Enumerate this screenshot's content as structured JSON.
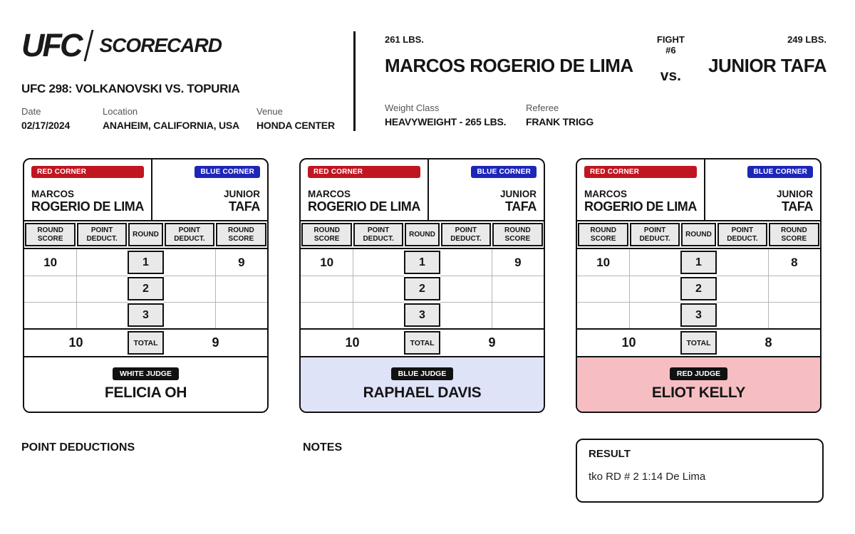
{
  "header": {
    "logo_ufc": "UFC",
    "logo_scorecard": "SCORECARD",
    "event_title": "UFC 298: VOLKANOVSKI VS. TOPURIA",
    "date_label": "Date",
    "date_value": "02/17/2024",
    "location_label": "Location",
    "location_value": "ANAHEIM, CALIFORNIA, USA",
    "venue_label": "Venue",
    "venue_value": "HONDA CENTER"
  },
  "fight": {
    "red_weight": "261 LBS.",
    "fight_number": "FIGHT #6",
    "blue_weight": "249 LBS.",
    "red_name": "MARCOS ROGERIO DE LIMA",
    "vs": "vs.",
    "blue_name": "JUNIOR TAFA",
    "weight_class_label": "Weight Class",
    "weight_class_value": "HEAVYWEIGHT - 265 LBS.",
    "referee_label": "Referee",
    "referee_value": "FRANK TRIGG"
  },
  "scorecards": [
    {
      "red_corner_label": "RED CORNER",
      "blue_corner_label": "BLUE CORNER",
      "red_first": "MARCOS",
      "red_last": "ROGERIO DE LIMA",
      "blue_first": "JUNIOR",
      "blue_last": "TAFA",
      "col_headers": [
        "ROUND SCORE",
        "POINT DEDUCT.",
        "ROUND",
        "POINT DEDUCT.",
        "ROUND SCORE"
      ],
      "rounds": [
        {
          "round": "1",
          "red_score": "10",
          "red_deduct": "",
          "blue_deduct": "",
          "blue_score": "9"
        },
        {
          "round": "2",
          "red_score": "",
          "red_deduct": "",
          "blue_deduct": "",
          "blue_score": ""
        },
        {
          "round": "3",
          "red_score": "",
          "red_deduct": "",
          "blue_deduct": "",
          "blue_score": ""
        }
      ],
      "total_label": "TOTAL",
      "red_total": "10",
      "blue_total": "9",
      "judge_type": "WHITE JUDGE",
      "judge_name": "FELICIA OH"
    },
    {
      "red_corner_label": "RED CORNER",
      "blue_corner_label": "BLUE CORNER",
      "red_first": "MARCOS",
      "red_last": "ROGERIO DE LIMA",
      "blue_first": "JUNIOR",
      "blue_last": "TAFA",
      "col_headers": [
        "ROUND SCORE",
        "POINT DEDUCT.",
        "ROUND",
        "POINT DEDUCT.",
        "ROUND SCORE"
      ],
      "rounds": [
        {
          "round": "1",
          "red_score": "10",
          "red_deduct": "",
          "blue_deduct": "",
          "blue_score": "9"
        },
        {
          "round": "2",
          "red_score": "",
          "red_deduct": "",
          "blue_deduct": "",
          "blue_score": ""
        },
        {
          "round": "3",
          "red_score": "",
          "red_deduct": "",
          "blue_deduct": "",
          "blue_score": ""
        }
      ],
      "total_label": "TOTAL",
      "red_total": "10",
      "blue_total": "9",
      "judge_type": "BLUE JUDGE",
      "judge_name": "RAPHAEL DAVIS"
    },
    {
      "red_corner_label": "RED CORNER",
      "blue_corner_label": "BLUE CORNER",
      "red_first": "MARCOS",
      "red_last": "ROGERIO DE LIMA",
      "blue_first": "JUNIOR",
      "blue_last": "TAFA",
      "col_headers": [
        "ROUND SCORE",
        "POINT DEDUCT.",
        "ROUND",
        "POINT DEDUCT.",
        "ROUND SCORE"
      ],
      "rounds": [
        {
          "round": "1",
          "red_score": "10",
          "red_deduct": "",
          "blue_deduct": "",
          "blue_score": "8"
        },
        {
          "round": "2",
          "red_score": "",
          "red_deduct": "",
          "blue_deduct": "",
          "blue_score": ""
        },
        {
          "round": "3",
          "red_score": "",
          "red_deduct": "",
          "blue_deduct": "",
          "blue_score": ""
        }
      ],
      "total_label": "TOTAL",
      "red_total": "10",
      "blue_total": "8",
      "judge_type": "RED JUDGE",
      "judge_name": "ELIOT KELLY"
    }
  ],
  "footer": {
    "point_deductions_label": "POINT DEDUCTIONS",
    "notes_label": "NOTES",
    "result_label": "RESULT",
    "result_value": "tko RD # 2 1:14 De Lima"
  },
  "colors": {
    "red_corner_badge": "#c01622",
    "blue_corner_badge": "#1e26b8",
    "judge_badge": "#111111",
    "blue_judge_bg": "#dfe3f8",
    "red_judge_bg": "#f6bec2",
    "table_header_cell_bg": "#e9e9e9",
    "ink": "#151515"
  }
}
